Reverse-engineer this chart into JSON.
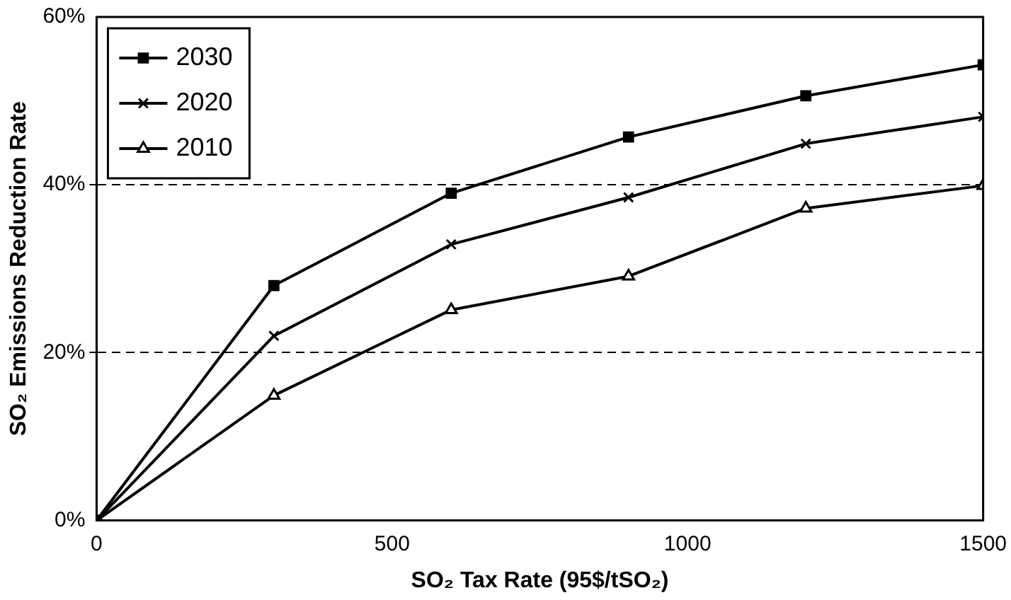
{
  "chart_data": {
    "type": "line",
    "xlabel": "SO₂ Tax Rate (95$/tSO₂)",
    "ylabel": "SO₂ Emissions Reduction Rate",
    "x": [
      0,
      300,
      600,
      900,
      1200,
      1500
    ],
    "series": [
      {
        "name": "2030",
        "color": "#000000",
        "marker": "square",
        "values": [
          0,
          28,
          39,
          45.7,
          50.6,
          54.3
        ]
      },
      {
        "name": "2020",
        "color": "#000000",
        "marker": "cross",
        "values": [
          0,
          22,
          32.9,
          38.5,
          44.9,
          48.1
        ]
      },
      {
        "name": "2010",
        "color": "#000000",
        "marker": "triangle",
        "values": [
          0,
          14.9,
          25.1,
          29.1,
          37.2,
          39.9
        ]
      }
    ],
    "xlim": [
      0,
      1500
    ],
    "xticks": [
      0,
      500,
      1000,
      1500
    ],
    "ylim": [
      0,
      60
    ],
    "yticks": [
      {
        "value": 0,
        "label": "0%"
      },
      {
        "value": 20,
        "label": "20%"
      },
      {
        "value": 40,
        "label": "40%"
      },
      {
        "value": 60,
        "label": "60%"
      }
    ],
    "grid": "y",
    "legend": "top left",
    "line_style": "solid"
  }
}
